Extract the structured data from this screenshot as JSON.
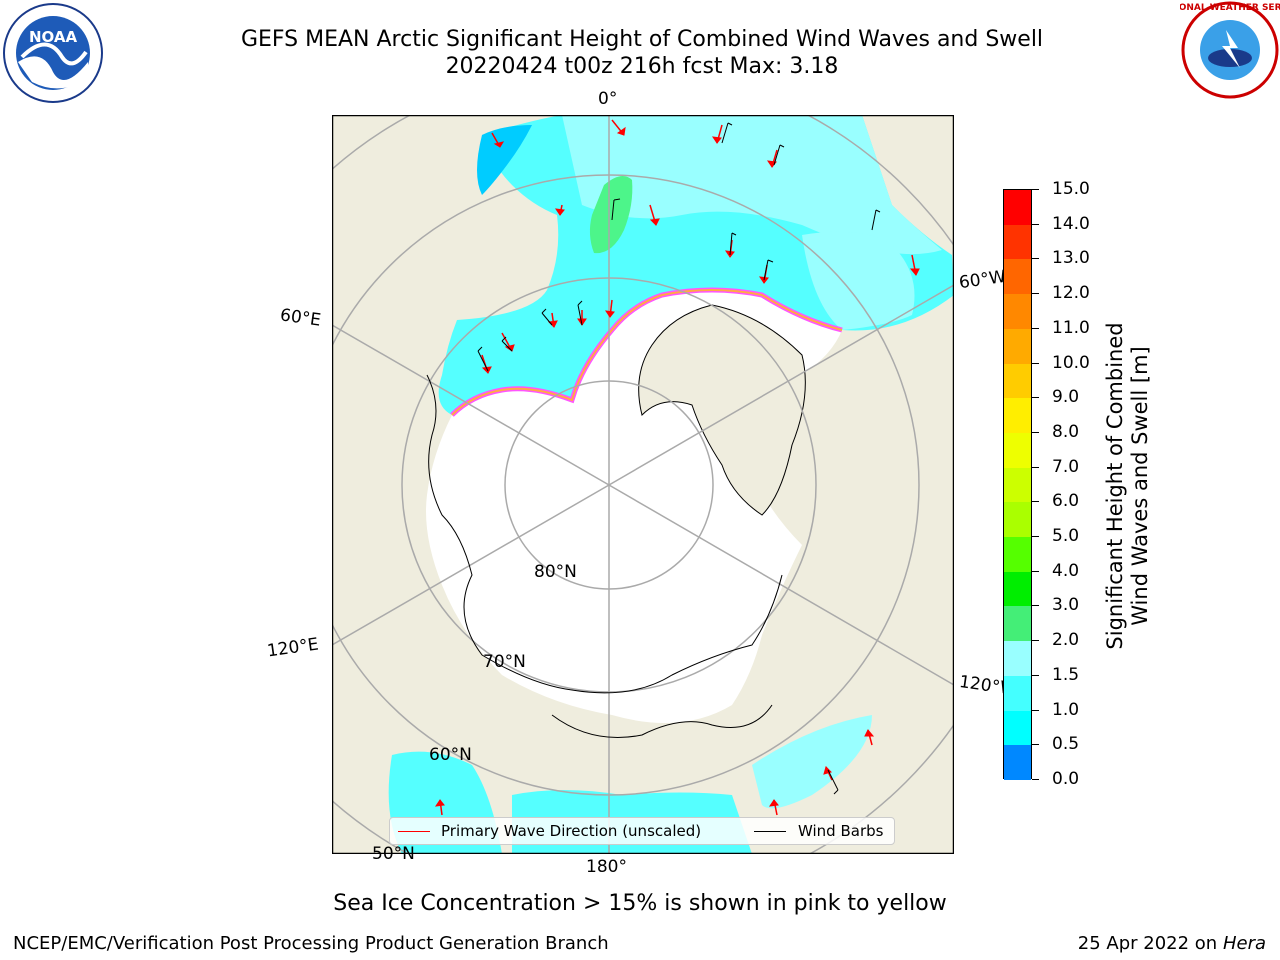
{
  "header": {
    "title_line1": "GEFS MEAN Arctic Significant Height of Combined Wind Waves and Swell",
    "title_line2": "20220424 t00z 216h fcst   Max: 3.18"
  },
  "logos": {
    "left_text": "NOAA",
    "right_text": "NATIONAL WEATHER SERVICE"
  },
  "map": {
    "longitude_labels": [
      "0°",
      "60°E",
      "120°E",
      "180°",
      "120°W",
      "60°W"
    ],
    "latitude_labels": [
      "80°N",
      "70°N",
      "60°N",
      "50°N"
    ],
    "colors": {
      "land": "#efedde",
      "ice": "#ffffff",
      "wave_low": "#00ffff",
      "wave_mid": "#99ffff",
      "wave_high": "#4df58a",
      "ice_edge": "#ff55ff",
      "arrow": "#ff0000",
      "barb": "#000000"
    }
  },
  "colorbar": {
    "label_line1": "Significant Height of Combined",
    "label_line2": "Wind Waves and Swell [m]",
    "ticks": [
      "15.0",
      "14.0",
      "13.0",
      "12.0",
      "11.0",
      "10.0",
      "9.0",
      "8.0",
      "7.0",
      "6.0",
      "5.0",
      "4.0",
      "3.0",
      "2.0",
      "1.5",
      "1.0",
      "0.5",
      "0.0"
    ],
    "colors_top_to_bottom": [
      "#ff0000",
      "#ff3300",
      "#ff6600",
      "#ff8800",
      "#ffaa00",
      "#ffcc00",
      "#ffee00",
      "#eeff00",
      "#ccff00",
      "#aaff00",
      "#55ff00",
      "#00ee00",
      "#44ee77",
      "#99ffff",
      "#44ffff",
      "#00ffff",
      "#0088ff",
      "#0000ff"
    ]
  },
  "legend": {
    "wave_direction": "Primary Wave Direction (unscaled)",
    "wind_barbs": "Wind Barbs"
  },
  "footer": {
    "note": "Sea Ice Concentration > 15% is shown in pink to yellow",
    "left": "NCEP/EMC/Verification Post Processing Product Generation Branch",
    "right_date": "25 Apr 2022 on ",
    "right_host": "Hera"
  }
}
